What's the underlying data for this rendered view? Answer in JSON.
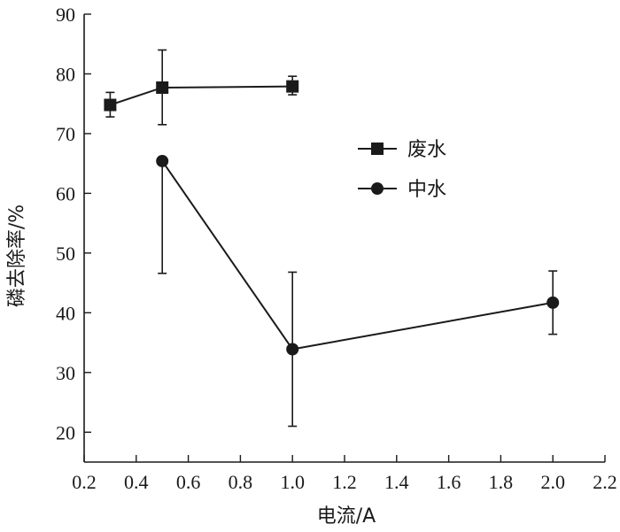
{
  "chart_data": {
    "type": "line",
    "title": "",
    "xlabel": "电流/A",
    "ylabel": "磷去除率/%",
    "xlim": [
      0.2,
      2.2
    ],
    "ylim": [
      15,
      90
    ],
    "xticks": [
      "0.2",
      "0.4",
      "0.6",
      "0.8",
      "1.0",
      "1.2",
      "1.4",
      "1.6",
      "1.8",
      "2.0",
      "2.2"
    ],
    "xtick_values": [
      0.2,
      0.4,
      0.6,
      0.8,
      1.0,
      1.2,
      1.4,
      1.6,
      1.8,
      2.0,
      2.2
    ],
    "yticks": [
      "20",
      "30",
      "40",
      "50",
      "60",
      "70",
      "80",
      "90"
    ],
    "ytick_values": [
      20,
      30,
      40,
      50,
      60,
      70,
      80,
      90
    ],
    "grid": false,
    "legend_position": "center-right",
    "series": [
      {
        "name": "废水",
        "marker": "square",
        "color": "#1a1a1a",
        "x": [
          0.3,
          0.5,
          1.0
        ],
        "y": [
          74.8,
          77.7,
          77.9
        ],
        "err_low": [
          72.8,
          71.5,
          76.5
        ],
        "err_high": [
          76.9,
          84.0,
          79.6
        ]
      },
      {
        "name": "中水",
        "marker": "circle",
        "color": "#1a1a1a",
        "x": [
          0.5,
          1.0,
          2.0
        ],
        "y": [
          65.4,
          33.9,
          41.7
        ],
        "err_low": [
          46.6,
          21.0,
          36.4
        ],
        "err_high": [
          65.4,
          46.8,
          47.0
        ]
      }
    ]
  }
}
